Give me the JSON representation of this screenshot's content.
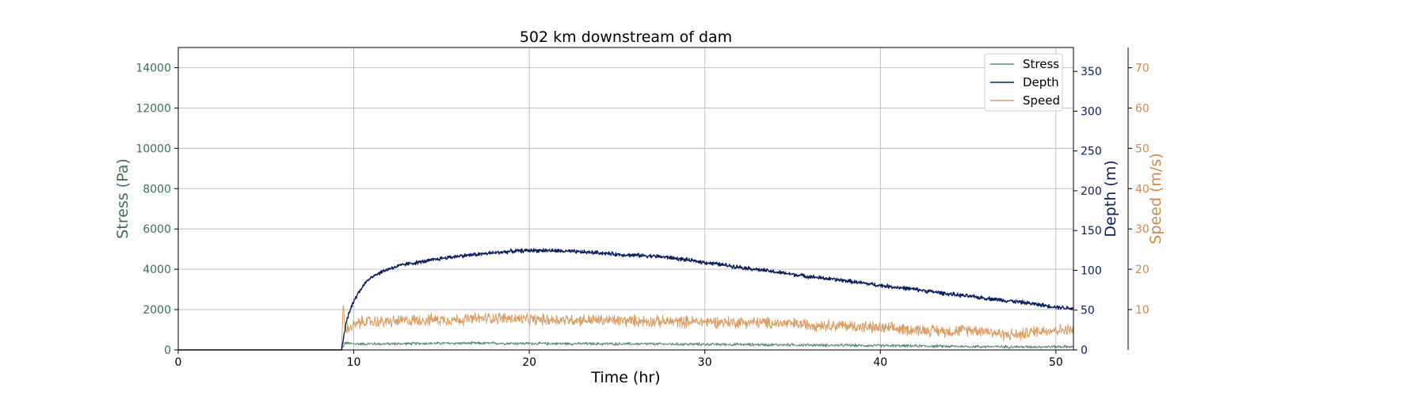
{
  "chart_data": {
    "type": "line",
    "title": "502 km downstream of dam",
    "xlabel": "Time (hr)",
    "xlim": [
      0,
      51
    ],
    "x_ticks": [
      0,
      10,
      20,
      30,
      40,
      50
    ],
    "grid": true,
    "legend_placement": "top-right",
    "axes": {
      "stress": {
        "label": "Stress (Pa)",
        "color": "#3d7050",
        "ylim": [
          0,
          15000
        ],
        "ticks": [
          0,
          2000,
          4000,
          6000,
          8000,
          10000,
          12000,
          14000
        ]
      },
      "depth": {
        "label": "Depth (m)",
        "color": "#0a1f5c",
        "ylim": [
          0,
          380
        ],
        "ticks": [
          0,
          50,
          100,
          150,
          200,
          250,
          300,
          350
        ]
      },
      "speed": {
        "label": "Speed (m/s)",
        "color": "#d4894a",
        "ylim": [
          0,
          75
        ],
        "ticks": [
          10,
          20,
          30,
          40,
          50,
          60,
          70
        ]
      }
    },
    "series": [
      {
        "name": "Stress",
        "axis": "stress",
        "color": "#5a8a72",
        "x": [
          0,
          9.2,
          9.3,
          9.5,
          10,
          12,
          15,
          18,
          20,
          25,
          30,
          35,
          40,
          45,
          48,
          51
        ],
        "y": [
          0,
          0,
          0,
          350,
          300,
          300,
          330,
          330,
          320,
          300,
          280,
          250,
          210,
          170,
          150,
          160
        ],
        "noise": 60
      },
      {
        "name": "Depth",
        "axis": "depth",
        "color": "#0a1f5c",
        "x": [
          0,
          9.2,
          9.3,
          9.6,
          10,
          10.5,
          11,
          12,
          13,
          14,
          15,
          16,
          17,
          18,
          19,
          20,
          21,
          22,
          23,
          24,
          25,
          26,
          27,
          28,
          29,
          30,
          32,
          34,
          36,
          38,
          40,
          42,
          44,
          46,
          48,
          50,
          51
        ],
        "y": [
          0,
          0,
          0,
          38,
          62,
          80,
          92,
          102,
          108,
          111,
          115,
          118,
          120,
          122,
          124,
          125,
          125,
          124,
          123,
          122,
          120,
          119,
          118,
          116,
          113,
          110,
          104,
          98,
          92,
          87,
          81,
          76,
          70,
          65,
          60,
          54,
          52
        ],
        "noise": 2
      },
      {
        "name": "Speed",
        "axis": "speed",
        "color": "#d99d63",
        "x": [
          0,
          9.2,
          9.3,
          9.4,
          9.5,
          10,
          10.5,
          12,
          14,
          16,
          18,
          20,
          22,
          25,
          28,
          30,
          33,
          36,
          38,
          40,
          42,
          44,
          45,
          46,
          47,
          48,
          49,
          50,
          51
        ],
        "y": [
          0,
          0,
          0,
          12,
          5,
          6,
          7,
          7,
          7.5,
          7.5,
          8,
          7.5,
          7.5,
          7.3,
          7,
          7,
          6.8,
          6.3,
          6,
          5.4,
          5,
          4.6,
          5,
          4.8,
          3.8,
          3.8,
          4.8,
          5,
          4.8
        ],
        "noise": 1.2
      }
    ]
  }
}
